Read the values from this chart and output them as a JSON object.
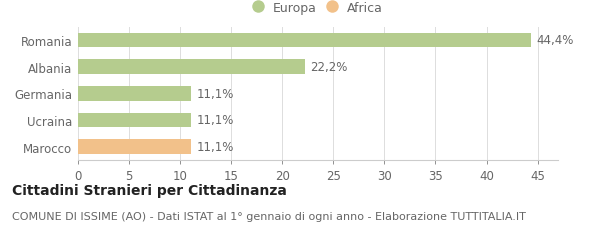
{
  "categories": [
    "Marocco",
    "Ucraina",
    "Germania",
    "Albania",
    "Romania"
  ],
  "values": [
    11.1,
    11.1,
    11.1,
    22.2,
    44.4
  ],
  "labels": [
    "11,1%",
    "11,1%",
    "11,1%",
    "22,2%",
    "44,4%"
  ],
  "colors": [
    "#f2c18a",
    "#b5cc8e",
    "#b5cc8e",
    "#b5cc8e",
    "#b5cc8e"
  ],
  "legend": [
    {
      "label": "Europa",
      "color": "#b5cc8e"
    },
    {
      "label": "Africa",
      "color": "#f2c18a"
    }
  ],
  "xlim": [
    0,
    47
  ],
  "xticks": [
    0,
    5,
    10,
    15,
    20,
    25,
    30,
    35,
    40,
    45
  ],
  "title_bold": "Cittadini Stranieri per Cittadinanza",
  "subtitle": "COMUNE DI ISSIME (AO) - Dati ISTAT al 1° gennaio di ogni anno - Elaborazione TUTTITALIA.IT",
  "bg_color": "#ffffff",
  "bar_height": 0.55,
  "fontsize_bar_labels": 8.5,
  "fontsize_ticks": 8.5,
  "fontsize_legend": 9,
  "fontsize_title": 10,
  "fontsize_subtitle": 8,
  "label_color": "#666666",
  "tick_color": "#666666",
  "grid_color": "#dddddd",
  "spine_color": "#cccccc"
}
